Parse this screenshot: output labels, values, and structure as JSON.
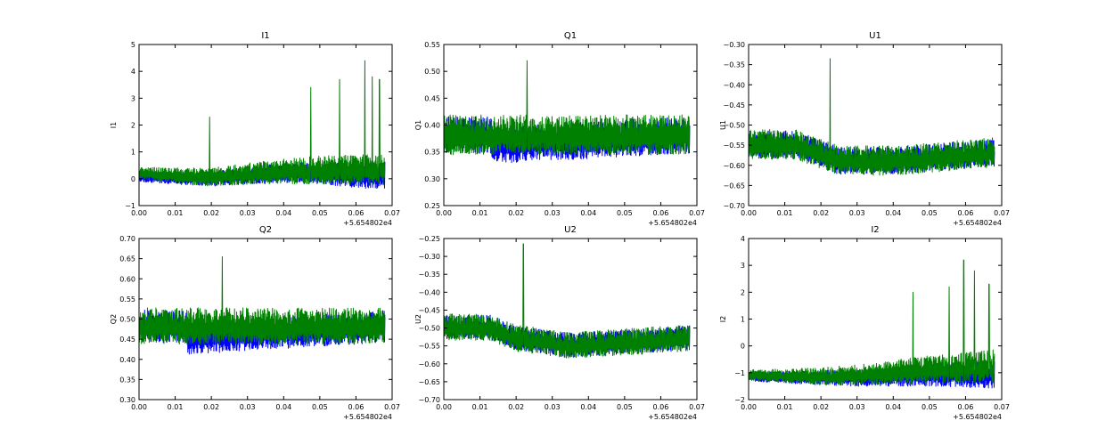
{
  "figure": {
    "x_ticks": [
      "0.00",
      "0.01",
      "0.02",
      "0.03",
      "0.04",
      "0.05",
      "0.06",
      "0.07"
    ],
    "x_offset_label": "+5.654802e4",
    "series_colors": [
      "#0000ff",
      "#008000"
    ]
  },
  "chart_data": [
    {
      "type": "line",
      "title": "I1",
      "ylabel": "I1",
      "xlim": [
        0.0,
        0.07
      ],
      "ylim": [
        -1,
        5
      ],
      "y_ticks": [
        "−1",
        "0",
        "1",
        "2",
        "3",
        "4",
        "5"
      ],
      "y_tick_values": [
        -1,
        0,
        1,
        2,
        3,
        4,
        5
      ],
      "series": [
        {
          "color": "#0000ff",
          "baseline": [
            [
              0.0,
              0.05
            ],
            [
              0.01,
              0.0
            ],
            [
              0.02,
              0.0
            ],
            [
              0.03,
              0.1
            ],
            [
              0.04,
              0.2
            ],
            [
              0.05,
              0.2
            ],
            [
              0.06,
              0.1
            ],
            [
              0.068,
              0.1
            ]
          ],
          "noise": [
            [
              0.0,
              0.3
            ],
            [
              0.068,
              0.9
            ]
          ],
          "seed": 11
        },
        {
          "color": "#008000",
          "baseline": [
            [
              0.0,
              0.2
            ],
            [
              0.01,
              0.1
            ],
            [
              0.02,
              0.05
            ],
            [
              0.03,
              0.15
            ],
            [
              0.04,
              0.25
            ],
            [
              0.05,
              0.3
            ],
            [
              0.06,
              0.3
            ],
            [
              0.068,
              0.3
            ]
          ],
          "noise": [
            [
              0.0,
              0.4
            ],
            [
              0.068,
              1.1
            ]
          ],
          "spikes": [
            [
              0.0195,
              2.3
            ],
            [
              0.0475,
              3.4
            ],
            [
              0.0555,
              3.7
            ],
            [
              0.0625,
              4.4
            ],
            [
              0.0645,
              3.8
            ],
            [
              0.0665,
              3.7
            ]
          ],
          "seed": 23
        }
      ]
    },
    {
      "type": "line",
      "title": "Q1",
      "ylabel": "Q1",
      "xlim": [
        0.0,
        0.07
      ],
      "ylim": [
        0.25,
        0.55
      ],
      "y_ticks": [
        "0.25",
        "0.30",
        "0.35",
        "0.40",
        "0.45",
        "0.50",
        "0.55"
      ],
      "y_tick_values": [
        0.25,
        0.3,
        0.35,
        0.4,
        0.45,
        0.5,
        0.55
      ],
      "series": [
        {
          "color": "#0000ff",
          "baseline": [
            [
              0.0,
              0.38
            ],
            [
              0.013,
              0.38
            ],
            [
              0.0135,
              0.36
            ],
            [
              0.068,
              0.38
            ]
          ],
          "noise": [
            [
              0.0,
              0.06
            ],
            [
              0.068,
              0.06
            ]
          ],
          "seed": 31
        },
        {
          "color": "#008000",
          "baseline": [
            [
              0.0,
              0.38
            ],
            [
              0.068,
              0.38
            ]
          ],
          "noise": [
            [
              0.0,
              0.065
            ],
            [
              0.068,
              0.065
            ]
          ],
          "spikes": [
            [
              0.023,
              0.52
            ]
          ],
          "seed": 37
        }
      ]
    },
    {
      "type": "line",
      "title": "U1",
      "ylabel": "U1",
      "xlim": [
        0.0,
        0.07
      ],
      "ylim": [
        -0.7,
        -0.3
      ],
      "y_ticks": [
        "−0.70",
        "−0.65",
        "−0.60",
        "−0.55",
        "−0.50",
        "−0.45",
        "−0.40",
        "−0.35",
        "−0.30"
      ],
      "y_tick_values": [
        -0.7,
        -0.65,
        -0.6,
        -0.55,
        -0.5,
        -0.45,
        -0.4,
        -0.35,
        -0.3
      ],
      "series": [
        {
          "color": "#0000ff",
          "baseline": [
            [
              0.0,
              -0.55
            ],
            [
              0.013,
              -0.55
            ],
            [
              0.025,
              -0.59
            ],
            [
              0.04,
              -0.59
            ],
            [
              0.068,
              -0.57
            ]
          ],
          "noise": [
            [
              0.0,
              0.06
            ],
            [
              0.068,
              0.06
            ]
          ],
          "seed": 41
        },
        {
          "color": "#008000",
          "baseline": [
            [
              0.0,
              -0.55
            ],
            [
              0.013,
              -0.55
            ],
            [
              0.025,
              -0.59
            ],
            [
              0.04,
              -0.59
            ],
            [
              0.068,
              -0.57
            ]
          ],
          "noise": [
            [
              0.0,
              0.065
            ],
            [
              0.068,
              0.065
            ]
          ],
          "spikes": [
            [
              0.0225,
              -0.335
            ]
          ],
          "seed": 43
        }
      ]
    },
    {
      "type": "line",
      "title": "Q2",
      "ylabel": "Q2",
      "xlim": [
        0.0,
        0.07
      ],
      "ylim": [
        0.3,
        0.7
      ],
      "y_ticks": [
        "0.30",
        "0.35",
        "0.40",
        "0.45",
        "0.50",
        "0.55",
        "0.60",
        "0.65",
        "0.70"
      ],
      "y_tick_values": [
        0.3,
        0.35,
        0.4,
        0.45,
        0.5,
        0.55,
        0.6,
        0.65,
        0.7
      ],
      "series": [
        {
          "color": "#0000ff",
          "baseline": [
            [
              0.0,
              0.48
            ],
            [
              0.013,
              0.48
            ],
            [
              0.0135,
              0.45
            ],
            [
              0.068,
              0.48
            ]
          ],
          "noise": [
            [
              0.0,
              0.07
            ],
            [
              0.068,
              0.07
            ]
          ],
          "seed": 51
        },
        {
          "color": "#008000",
          "baseline": [
            [
              0.0,
              0.48
            ],
            [
              0.068,
              0.48
            ]
          ],
          "noise": [
            [
              0.0,
              0.08
            ],
            [
              0.068,
              0.08
            ]
          ],
          "spikes": [
            [
              0.023,
              0.655
            ]
          ],
          "seed": 53
        }
      ]
    },
    {
      "type": "line",
      "title": "U2",
      "ylabel": "U2",
      "xlim": [
        0.0,
        0.07
      ],
      "ylim": [
        -0.7,
        -0.25
      ],
      "y_ticks": [
        "−0.70",
        "−0.65",
        "−0.60",
        "−0.55",
        "−0.50",
        "−0.45",
        "−0.40",
        "−0.35",
        "−0.30",
        "−0.25"
      ],
      "y_tick_values": [
        -0.7,
        -0.65,
        -0.6,
        -0.55,
        -0.5,
        -0.45,
        -0.4,
        -0.35,
        -0.3,
        -0.25
      ],
      "series": [
        {
          "color": "#0000ff",
          "baseline": [
            [
              0.0,
              -0.5
            ],
            [
              0.013,
              -0.5
            ],
            [
              0.02,
              -0.53
            ],
            [
              0.035,
              -0.55
            ],
            [
              0.068,
              -0.53
            ]
          ],
          "noise": [
            [
              0.0,
              0.06
            ],
            [
              0.068,
              0.06
            ]
          ],
          "seed": 61
        },
        {
          "color": "#008000",
          "baseline": [
            [
              0.0,
              -0.5
            ],
            [
              0.013,
              -0.5
            ],
            [
              0.02,
              -0.53
            ],
            [
              0.035,
              -0.55
            ],
            [
              0.068,
              -0.53
            ]
          ],
          "noise": [
            [
              0.0,
              0.065
            ],
            [
              0.068,
              0.065
            ]
          ],
          "spikes": [
            [
              0.022,
              -0.265
            ]
          ],
          "seed": 67
        }
      ]
    },
    {
      "type": "line",
      "title": "I2",
      "ylabel": "I2",
      "xlim": [
        0.0,
        0.07
      ],
      "ylim": [
        -2,
        4
      ],
      "y_ticks": [
        "−2",
        "−1",
        "0",
        "1",
        "2",
        "3",
        "4"
      ],
      "y_tick_values": [
        -2,
        -1,
        0,
        1,
        2,
        3,
        4
      ],
      "series": [
        {
          "color": "#0000ff",
          "baseline": [
            [
              0.0,
              -1.15
            ],
            [
              0.02,
              -1.2
            ],
            [
              0.03,
              -1.2
            ],
            [
              0.04,
              -1.15
            ],
            [
              0.05,
              -1.1
            ],
            [
              0.068,
              -1.1
            ]
          ],
          "noise": [
            [
              0.0,
              0.3
            ],
            [
              0.068,
              0.9
            ]
          ],
          "seed": 71
        },
        {
          "color": "#008000",
          "baseline": [
            [
              0.0,
              -1.1
            ],
            [
              0.02,
              -1.15
            ],
            [
              0.03,
              -1.1
            ],
            [
              0.04,
              -1.0
            ],
            [
              0.05,
              -0.9
            ],
            [
              0.068,
              -0.8
            ]
          ],
          "noise": [
            [
              0.0,
              0.35
            ],
            [
              0.068,
              1.1
            ]
          ],
          "spikes": [
            [
              0.0455,
              2.0
            ],
            [
              0.0555,
              2.2
            ],
            [
              0.0595,
              3.2
            ],
            [
              0.0625,
              2.8
            ],
            [
              0.0665,
              2.3
            ]
          ],
          "seed": 79
        }
      ]
    }
  ]
}
